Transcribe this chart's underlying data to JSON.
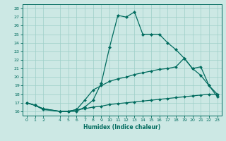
{
  "xlabel": "Humidex (Indice chaleur)",
  "bg_color": "#cce8e4",
  "line_color": "#006b5e",
  "grid_color": "#9dcfc8",
  "xlim": [
    -0.5,
    23.5
  ],
  "ylim": [
    15.5,
    28.5
  ],
  "xticks": [
    0,
    1,
    2,
    4,
    5,
    6,
    7,
    8,
    9,
    10,
    11,
    12,
    13,
    14,
    15,
    16,
    17,
    18,
    19,
    20,
    21,
    22,
    23
  ],
  "yticks": [
    16,
    17,
    18,
    19,
    20,
    21,
    22,
    23,
    24,
    25,
    26,
    27,
    28
  ],
  "line1_x": [
    0,
    1,
    2,
    4,
    5,
    6,
    7,
    8,
    9,
    10,
    11,
    12,
    13,
    14,
    15,
    16,
    17,
    18,
    19,
    20,
    21,
    22,
    23
  ],
  "line1_y": [
    17.0,
    16.7,
    16.2,
    16.0,
    16.0,
    16.0,
    16.5,
    17.3,
    19.3,
    23.5,
    27.2,
    27.0,
    27.6,
    25.0,
    25.0,
    25.0,
    24.0,
    23.2,
    22.2,
    21.0,
    20.2,
    19.0,
    17.7
  ],
  "line2_x": [
    0,
    1,
    2,
    4,
    5,
    6,
    7,
    8,
    9,
    10,
    11,
    12,
    13,
    14,
    15,
    16,
    17,
    18,
    19,
    20,
    21,
    22,
    23
  ],
  "line2_y": [
    17.0,
    16.7,
    16.3,
    16.0,
    16.0,
    16.2,
    16.3,
    16.5,
    16.6,
    16.8,
    16.9,
    17.0,
    17.1,
    17.2,
    17.3,
    17.4,
    17.5,
    17.6,
    17.7,
    17.8,
    17.9,
    18.0,
    18.0
  ],
  "line3_x": [
    0,
    1,
    2,
    4,
    5,
    6,
    7,
    8,
    9,
    10,
    11,
    12,
    13,
    14,
    15,
    16,
    17,
    18,
    19,
    20,
    21,
    22,
    23
  ],
  "line3_y": [
    17.0,
    16.7,
    16.3,
    16.0,
    16.0,
    16.2,
    17.3,
    18.5,
    19.0,
    19.5,
    19.8,
    20.0,
    20.3,
    20.5,
    20.7,
    20.9,
    21.0,
    21.2,
    22.2,
    21.0,
    21.2,
    19.0,
    18.0
  ]
}
